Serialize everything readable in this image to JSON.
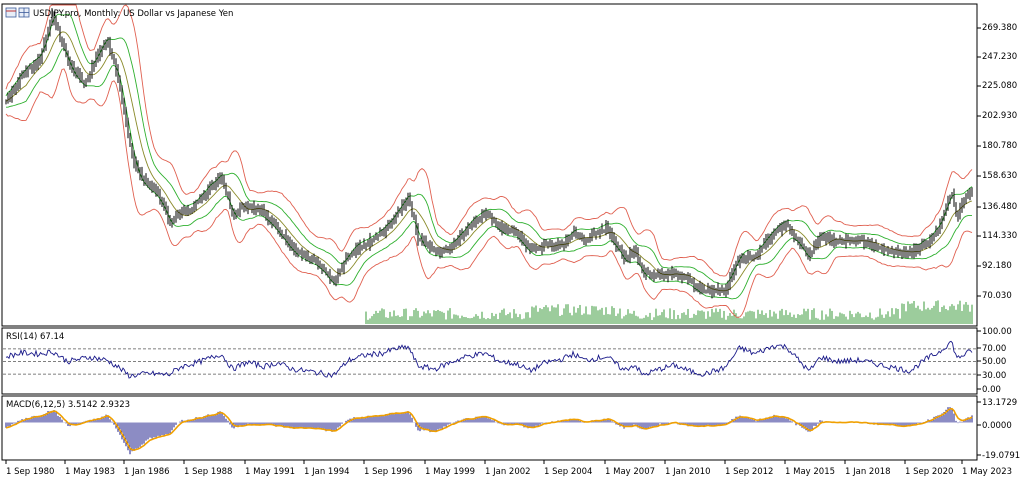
{
  "main_title": "USDJPY.pro, Monthly:  US Dollar vs Japanese Yen",
  "rsi_title": "RSI(14) 67.14",
  "macd_title": "MACD(6,12,5) 3.5142 2.9323",
  "price_axis": [
    "269.380",
    "247.230",
    "225.080",
    "202.930",
    "180.780",
    "158.630",
    "136.480",
    "114.330",
    "92.180",
    "70.030"
  ],
  "rsi_axis": [
    "100.00",
    "70.00",
    "50.00",
    "30.00",
    "0.00"
  ],
  "macd_axis": [
    "13.1729",
    "0.0000",
    "-19.0791"
  ],
  "time_axis": [
    "1 Sep 1980",
    "1 May 1983",
    "1 Jan 1986",
    "1 Sep 1988",
    "1 May 1991",
    "1 Jan 1994",
    "1 Sep 1996",
    "1 May 1999",
    "1 Jan 2002",
    "1 Sep 2004",
    "1 May 2007",
    "1 Jan 2010",
    "1 Sep 2012",
    "1 May 2015",
    "1 Jan 2018",
    "1 Sep 2020",
    "1 May 2023"
  ],
  "colors": {
    "bars": "#000000",
    "bollinger_outer": "#e06050",
    "bollinger_inner": "#2fb02f",
    "moving_average": "#8a8a2a",
    "volume": "#3a9a3a",
    "rsi_line": "#1a1a8a",
    "macd_histogram": "#1a1a8a",
    "macd_signal": "#f0a000"
  },
  "chart_data": {
    "type": "candlestick",
    "symbol": "USDJPY.pro",
    "timeframe": "Monthly",
    "description": "US Dollar vs Japanese Yen",
    "price_range": [
      55,
      280
    ],
    "price_series": [
      [
        "1980-09",
        212
      ],
      [
        "1981-06",
        232
      ],
      [
        "1982-03",
        242
      ],
      [
        "1982-10",
        275
      ],
      [
        "1983-06",
        240
      ],
      [
        "1984-03",
        225
      ],
      [
        "1984-11",
        248
      ],
      [
        "1985-03",
        255
      ],
      [
        "1985-09",
        230
      ],
      [
        "1986-01",
        195
      ],
      [
        "1986-06",
        165
      ],
      [
        "1986-12",
        155
      ],
      [
        "1987-06",
        145
      ],
      [
        "1988-01",
        126
      ],
      [
        "1988-06",
        133
      ],
      [
        "1988-12",
        135
      ],
      [
        "1989-06",
        145
      ],
      [
        "1990-04",
        158
      ],
      [
        "1990-10",
        132
      ],
      [
        "1991-06",
        138
      ],
      [
        "1992-03",
        133
      ],
      [
        "1992-10",
        122
      ],
      [
        "1993-06",
        107
      ],
      [
        "1994-06",
        100
      ],
      [
        "1995-04",
        83
      ],
      [
        "1995-12",
        102
      ],
      [
        "1996-09",
        110
      ],
      [
        "1997-06",
        118
      ],
      [
        "1998-01",
        130
      ],
      [
        "1998-08",
        145
      ],
      [
        "1999-01",
        115
      ],
      [
        "1999-10",
        105
      ],
      [
        "2000-06",
        107
      ],
      [
        "2001-03",
        122
      ],
      [
        "2002-01",
        133
      ],
      [
        "2002-09",
        122
      ],
      [
        "2003-06",
        118
      ],
      [
        "2004-01",
        106
      ],
      [
        "2004-09",
        110
      ],
      [
        "2005-06",
        110
      ],
      [
        "2005-12",
        118
      ],
      [
        "2006-06",
        113
      ],
      [
        "2007-06",
        122
      ],
      [
        "2008-03",
        100
      ],
      [
        "2008-09",
        107
      ],
      [
        "2009-01",
        90
      ],
      [
        "2009-10",
        89
      ],
      [
        "2010-06",
        90
      ],
      [
        "2011-03",
        83
      ],
      [
        "2011-10",
        77
      ],
      [
        "2012-09",
        78
      ],
      [
        "2013-05",
        102
      ],
      [
        "2014-01",
        102
      ],
      [
        "2014-12",
        120
      ],
      [
        "2015-06",
        124
      ],
      [
        "2016-06",
        102
      ],
      [
        "2016-12",
        117
      ],
      [
        "2017-09",
        112
      ],
      [
        "2018-09",
        113
      ],
      [
        "2019-09",
        107
      ],
      [
        "2020-12",
        104
      ],
      [
        "2021-09",
        112
      ],
      [
        "2022-03",
        122
      ],
      [
        "2022-10",
        148
      ],
      [
        "2023-01",
        130
      ],
      [
        "2023-06",
        145
      ],
      [
        "2023-09",
        149
      ]
    ],
    "volume_series_start": "1996-09",
    "rsi": {
      "period": 14,
      "last": 67.14,
      "range": [
        0,
        100
      ],
      "levels": [
        30,
        50,
        70
      ],
      "series": [
        [
          "1980-09",
          58
        ],
        [
          "1981-06",
          64
        ],
        [
          "1982-03",
          62
        ],
        [
          "1982-10",
          66
        ],
        [
          "1983-06",
          50
        ],
        [
          "1984-06",
          57
        ],
        [
          "1985-03",
          52
        ],
        [
          "1985-09",
          41
        ],
        [
          "1986-03",
          27
        ],
        [
          "1987-01",
          31
        ],
        [
          "1987-12",
          29
        ],
        [
          "1988-06",
          41
        ],
        [
          "1989-06",
          51
        ],
        [
          "1990-04",
          62
        ],
        [
          "1990-10",
          38
        ],
        [
          "1991-06",
          49
        ],
        [
          "1992-03",
          42
        ],
        [
          "1992-10",
          48
        ],
        [
          "1993-06",
          38
        ],
        [
          "1994-06",
          33
        ],
        [
          "1995-04",
          28
        ],
        [
          "1995-12",
          52
        ],
        [
          "1996-09",
          60
        ],
        [
          "1997-06",
          63
        ],
        [
          "1998-01",
          70
        ],
        [
          "1998-08",
          73
        ],
        [
          "1999-01",
          43
        ],
        [
          "1999-10",
          38
        ],
        [
          "2000-06",
          48
        ],
        [
          "2001-03",
          58
        ],
        [
          "2002-01",
          63
        ],
        [
          "2002-09",
          50
        ],
        [
          "2003-06",
          46
        ],
        [
          "2004-01",
          35
        ],
        [
          "2004-09",
          48
        ],
        [
          "2005-06",
          54
        ],
        [
          "2005-12",
          62
        ],
        [
          "2006-06",
          52
        ],
        [
          "2007-06",
          58
        ],
        [
          "2008-03",
          36
        ],
        [
          "2008-09",
          45
        ],
        [
          "2009-01",
          28
        ],
        [
          "2009-10",
          38
        ],
        [
          "2010-06",
          44
        ],
        [
          "2011-03",
          34
        ],
        [
          "2011-10",
          30
        ],
        [
          "2012-09",
          40
        ],
        [
          "2013-05",
          72
        ],
        [
          "2014-01",
          62
        ],
        [
          "2014-12",
          76
        ],
        [
          "2015-06",
          73
        ],
        [
          "2016-06",
          34
        ],
        [
          "2016-12",
          57
        ],
        [
          "2017-09",
          50
        ],
        [
          "2018-09",
          52
        ],
        [
          "2019-09",
          44
        ],
        [
          "2020-12",
          35
        ],
        [
          "2021-09",
          55
        ],
        [
          "2022-03",
          64
        ],
        [
          "2022-10",
          82
        ],
        [
          "2023-01",
          55
        ],
        [
          "2023-06",
          63
        ],
        [
          "2023-09",
          67
        ]
      ]
    },
    "macd": {
      "fast": 6,
      "slow": 12,
      "signal": 5,
      "main_last": 3.5142,
      "signal_last": 2.9323,
      "range": [
        -19.0791,
        13.1729
      ],
      "histogram": [
        [
          "1980-09",
          -3
        ],
        [
          "1981-06",
          2
        ],
        [
          "1982-03",
          4
        ],
        [
          "1982-10",
          7
        ],
        [
          "1983-06",
          -2
        ],
        [
          "1984-06",
          1
        ],
        [
          "1985-03",
          4
        ],
        [
          "1985-09",
          -5
        ],
        [
          "1986-03",
          -17
        ],
        [
          "1987-01",
          -9
        ],
        [
          "1987-12",
          -6
        ],
        [
          "1988-06",
          1
        ],
        [
          "1989-06",
          3
        ],
        [
          "1990-04",
          6
        ],
        [
          "1990-10",
          -3
        ],
        [
          "1991-06",
          -1
        ],
        [
          "1992-03",
          -1
        ],
        [
          "1992-10",
          -2
        ],
        [
          "1993-06",
          -3
        ],
        [
          "1994-06",
          -3
        ],
        [
          "1995-04",
          -5
        ],
        [
          "1995-12",
          2
        ],
        [
          "1996-09",
          3
        ],
        [
          "1997-06",
          4
        ],
        [
          "1998-01",
          5
        ],
        [
          "1998-08",
          6
        ],
        [
          "1999-01",
          -4
        ],
        [
          "1999-10",
          -5
        ],
        [
          "2000-06",
          -1
        ],
        [
          "2001-03",
          2
        ],
        [
          "2002-01",
          3
        ],
        [
          "2002-09",
          -1
        ],
        [
          "2003-06",
          -1
        ],
        [
          "2004-01",
          -3
        ],
        [
          "2004-09",
          0
        ],
        [
          "2005-06",
          1
        ],
        [
          "2005-12",
          2
        ],
        [
          "2006-06",
          0
        ],
        [
          "2007-06",
          2
        ],
        [
          "2008-03",
          -3
        ],
        [
          "2008-09",
          -1
        ],
        [
          "2009-01",
          -4
        ],
        [
          "2009-10",
          -1
        ],
        [
          "2010-06",
          0
        ],
        [
          "2011-03",
          -2
        ],
        [
          "2011-10",
          -2
        ],
        [
          "2012-09",
          -1
        ],
        [
          "2013-05",
          4
        ],
        [
          "2014-01",
          1
        ],
        [
          "2014-12",
          4
        ],
        [
          "2015-06",
          2
        ],
        [
          "2016-06",
          -5
        ],
        [
          "2016-12",
          1
        ],
        [
          "2017-09",
          0
        ],
        [
          "2018-09",
          0
        ],
        [
          "2019-09",
          -1
        ],
        [
          "2020-12",
          -2
        ],
        [
          "2021-09",
          1
        ],
        [
          "2022-03",
          4
        ],
        [
          "2022-10",
          9
        ],
        [
          "2023-01",
          -1
        ],
        [
          "2023-06",
          2
        ],
        [
          "2023-09",
          3.5
        ]
      ]
    }
  }
}
